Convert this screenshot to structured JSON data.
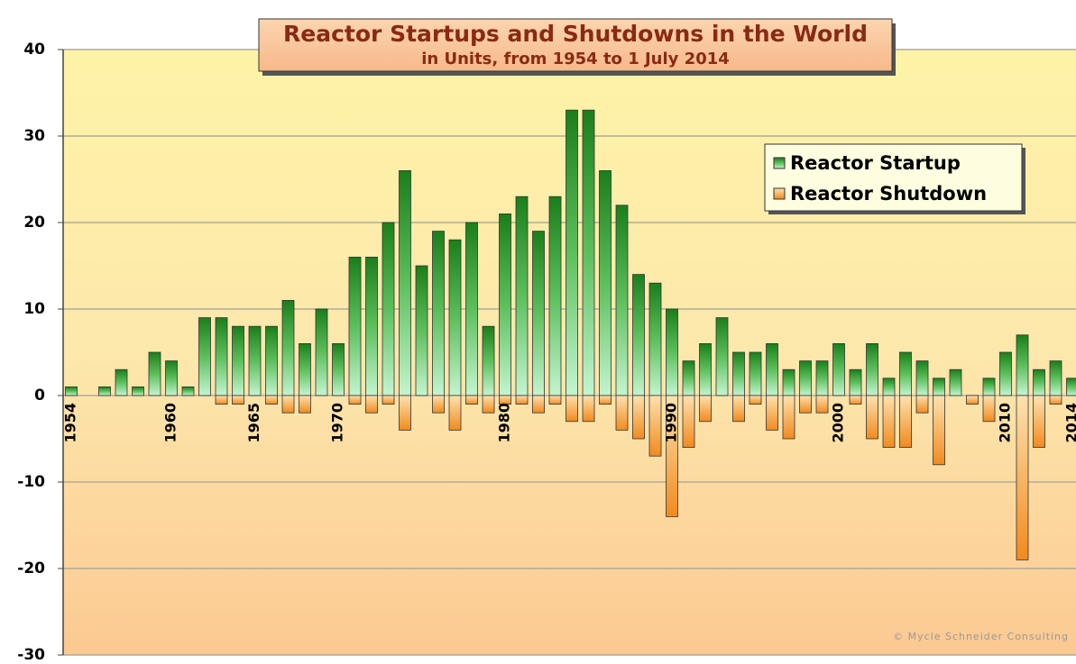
{
  "chart_data": {
    "type": "bar",
    "title": "Reactor Startups and Shutdowns in the World",
    "subtitle": "in Units, from 1954 to 1 July 2014",
    "annotation": "© Mycle Schneider Consulting",
    "categories": [
      "1954",
      null,
      null,
      null,
      null,
      null,
      "1960",
      null,
      null,
      null,
      null,
      "1965",
      null,
      null,
      null,
      null,
      "1970",
      null,
      null,
      null,
      null,
      null,
      null,
      null,
      null,
      null,
      "1980",
      null,
      null,
      null,
      null,
      null,
      null,
      null,
      null,
      null,
      "1990",
      null,
      null,
      null,
      null,
      null,
      null,
      null,
      null,
      null,
      "2000",
      null,
      null,
      null,
      null,
      null,
      null,
      null,
      null,
      null,
      "2010",
      null,
      null,
      null,
      "2014"
    ],
    "series": [
      {
        "name": "Reactor Startup",
        "color": "#1e8c1e",
        "values": [
          1,
          0,
          1,
          3,
          1,
          5,
          4,
          1,
          9,
          9,
          8,
          8,
          8,
          11,
          6,
          10,
          6,
          16,
          16,
          20,
          26,
          15,
          19,
          18,
          20,
          8,
          21,
          23,
          19,
          23,
          33,
          33,
          26,
          22,
          14,
          13,
          10,
          4,
          6,
          9,
          5,
          5,
          6,
          3,
          4,
          4,
          6,
          3,
          6,
          2,
          5,
          4,
          2,
          3,
          0,
          2,
          5,
          7,
          3,
          4,
          2
        ]
      },
      {
        "name": "Reactor Shutdown",
        "color": "#f39a2e",
        "values": [
          0,
          0,
          0,
          0,
          0,
          0,
          0,
          0,
          0,
          -1,
          -1,
          0,
          -1,
          -2,
          -2,
          0,
          0,
          -1,
          -2,
          -1,
          -4,
          0,
          -2,
          -4,
          -1,
          -2,
          -1,
          -1,
          -2,
          -1,
          -3,
          -3,
          -1,
          -4,
          -5,
          -7,
          -14,
          -6,
          -3,
          0,
          -3,
          -1,
          -4,
          -5,
          -2,
          -2,
          0,
          -1,
          -5,
          -6,
          -6,
          -2,
          -8,
          0,
          -1,
          -3,
          0,
          -19,
          -6,
          -1,
          0
        ]
      }
    ],
    "ylim": [
      -30,
      40
    ],
    "yticks": [
      -30,
      -20,
      -10,
      0,
      10,
      20,
      30,
      40
    ],
    "grid": true,
    "legend": "upper right"
  }
}
